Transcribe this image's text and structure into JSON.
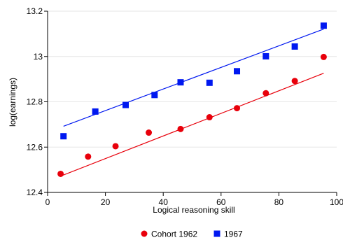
{
  "chart_data": {
    "type": "scatter",
    "xlabel": "Logical reasoning skill",
    "ylabel": "log(earnings)",
    "xlim": [
      0,
      100
    ],
    "ylim": [
      12.4,
      13.2
    ],
    "x_ticks": [
      0,
      20,
      40,
      60,
      80,
      100
    ],
    "y_ticks": [
      12.4,
      12.6,
      12.8,
      13.0,
      13.2
    ],
    "x_tick_labels": [
      "0",
      "20",
      "40",
      "60",
      "80",
      "100"
    ],
    "y_tick_labels": [
      "12.4",
      "12.6",
      "12.8",
      "13",
      "13.2"
    ],
    "grid": "horizontal",
    "legend_position": "bottom",
    "series": [
      {
        "name": "Cohort 1962",
        "marker": "circle",
        "color": "#e8000b",
        "points": [
          {
            "x": 4.5,
            "y": 12.482
          },
          {
            "x": 14,
            "y": 12.558
          },
          {
            "x": 23.5,
            "y": 12.604
          },
          {
            "x": 35,
            "y": 12.664
          },
          {
            "x": 46,
            "y": 12.68
          },
          {
            "x": 56,
            "y": 12.732
          },
          {
            "x": 65.5,
            "y": 12.772
          },
          {
            "x": 75.5,
            "y": 12.838
          },
          {
            "x": 85.5,
            "y": 12.892
          },
          {
            "x": 95.5,
            "y": 12.998
          }
        ],
        "fit_line": {
          "x": [
            4.5,
            95.5
          ],
          "y": [
            12.472,
            12.926
          ]
        }
      },
      {
        "name": "1967",
        "marker": "square",
        "color": "#0018f0",
        "points": [
          {
            "x": 5.5,
            "y": 12.648
          },
          {
            "x": 16.5,
            "y": 12.757
          },
          {
            "x": 27,
            "y": 12.786
          },
          {
            "x": 37,
            "y": 12.83
          },
          {
            "x": 46,
            "y": 12.886
          },
          {
            "x": 56,
            "y": 12.884
          },
          {
            "x": 65.5,
            "y": 12.935
          },
          {
            "x": 75.5,
            "y": 13.001
          },
          {
            "x": 85.5,
            "y": 13.044
          },
          {
            "x": 95.5,
            "y": 13.136
          }
        ],
        "fit_line": {
          "x": [
            5.5,
            95.5
          ],
          "y": [
            12.692,
            13.121
          ]
        }
      }
    ]
  }
}
